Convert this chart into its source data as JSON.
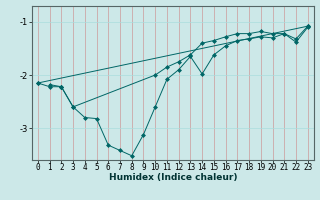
{
  "xlabel": "Humidex (Indice chaleur)",
  "ylabel": "",
  "bg_color": "#cce8e8",
  "line_color": "#006666",
  "marker": "D",
  "marker_size": 2.0,
  "linewidth": 0.7,
  "xlim": [
    -0.5,
    23.5
  ],
  "ylim": [
    -3.6,
    -0.7
  ],
  "yticks": [
    -3,
    -2,
    -1
  ],
  "xticks": [
    0,
    1,
    2,
    3,
    4,
    5,
    6,
    7,
    8,
    9,
    10,
    11,
    12,
    13,
    14,
    15,
    16,
    17,
    18,
    19,
    20,
    21,
    22,
    23
  ],
  "xlabel_fontsize": 6.5,
  "tick_fontsize": 5.5,
  "series": [
    [
      null,
      -2.18,
      -2.22,
      -2.6,
      -2.8,
      -2.82,
      -3.32,
      -3.42,
      -3.52,
      -3.12,
      -2.6,
      -2.08,
      -1.9,
      -1.65,
      -1.98,
      -1.62,
      -1.45,
      -1.35,
      -1.32,
      -1.28,
      -1.3,
      -1.22,
      -1.38,
      -1.1
    ],
    [
      null,
      null,
      -2.22,
      -2.6,
      null,
      null,
      null,
      null,
      null,
      null,
      -2.0,
      -1.85,
      -1.75,
      -1.62,
      -1.4,
      -1.35,
      -1.28,
      -1.22,
      -1.22,
      -1.18,
      -1.22,
      -1.22,
      -1.32,
      -1.08
    ],
    [
      -2.15,
      -2.22,
      -2.22,
      null,
      null,
      null,
      null,
      null,
      null,
      null,
      null,
      null,
      null,
      null,
      null,
      null,
      null,
      null,
      null,
      null,
      null,
      null,
      null,
      null
    ],
    [
      -2.15,
      null,
      null,
      null,
      null,
      null,
      null,
      null,
      null,
      null,
      null,
      null,
      null,
      null,
      null,
      null,
      null,
      null,
      null,
      null,
      null,
      null,
      null,
      -1.08
    ]
  ]
}
